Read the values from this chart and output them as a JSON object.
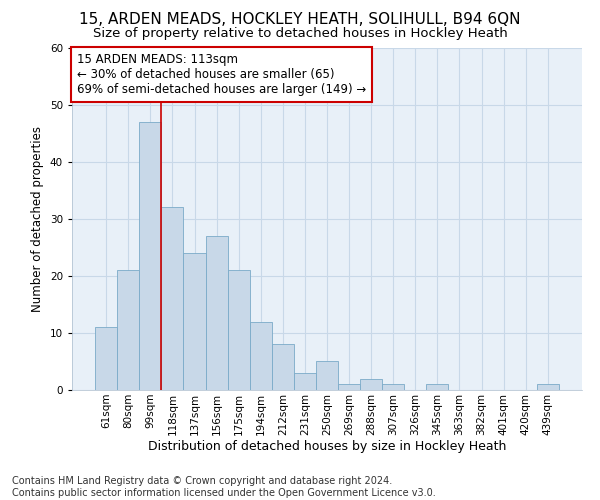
{
  "title": "15, ARDEN MEADS, HOCKLEY HEATH, SOLIHULL, B94 6QN",
  "subtitle": "Size of property relative to detached houses in Hockley Heath",
  "xlabel": "Distribution of detached houses by size in Hockley Heath",
  "ylabel": "Number of detached properties",
  "categories": [
    "61sqm",
    "80sqm",
    "99sqm",
    "118sqm",
    "137sqm",
    "156sqm",
    "175sqm",
    "194sqm",
    "212sqm",
    "231sqm",
    "250sqm",
    "269sqm",
    "288sqm",
    "307sqm",
    "326sqm",
    "345sqm",
    "363sqm",
    "382sqm",
    "401sqm",
    "420sqm",
    "439sqm"
  ],
  "values": [
    11,
    21,
    47,
    32,
    24,
    27,
    21,
    12,
    8,
    3,
    5,
    1,
    2,
    1,
    0,
    1,
    0,
    0,
    0,
    0,
    1
  ],
  "bar_color": "#c8d8e8",
  "bar_edgecolor": "#7aaac8",
  "grid_color": "#c8d8e8",
  "bg_color": "#e8f0f8",
  "vline_color": "#cc0000",
  "vline_x_data": 2.5,
  "annotation_text": "15 ARDEN MEADS: 113sqm\n← 30% of detached houses are smaller (65)\n69% of semi-detached houses are larger (149) →",
  "annotation_box_color": "#cc0000",
  "footnote_line1": "Contains HM Land Registry data © Crown copyright and database right 2024.",
  "footnote_line2": "Contains public sector information licensed under the Open Government Licence v3.0.",
  "ylim": [
    0,
    60
  ],
  "title_fontsize": 11,
  "subtitle_fontsize": 9.5,
  "xlabel_fontsize": 9,
  "ylabel_fontsize": 8.5,
  "tick_fontsize": 7.5,
  "annotation_fontsize": 8.5,
  "footnote_fontsize": 7
}
